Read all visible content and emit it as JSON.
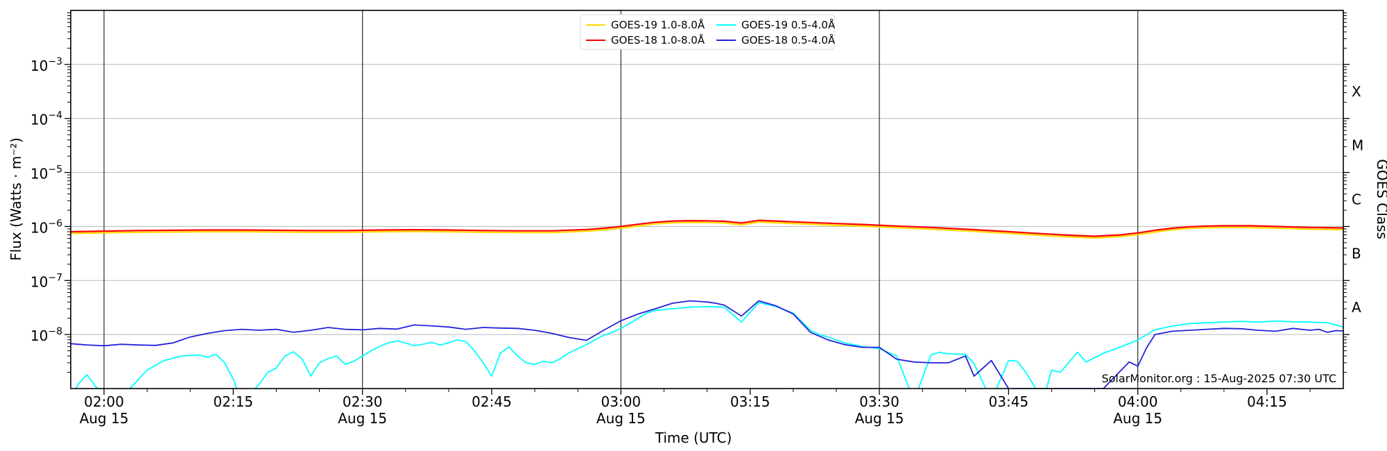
{
  "watermark": "SolarMonitor.org : 15-Aug-2025 07:30 UTC",
  "legend": {
    "items": [
      {
        "label": "GOES-19 1.0-8.0Å",
        "color": "#ffd900"
      },
      {
        "label": "GOES-18 1.0-8.0Å",
        "color": "#ff0000"
      },
      {
        "label": "GOES-19 0.5-4.0Å",
        "color": "#00ffff"
      },
      {
        "label": "GOES-18 0.5-4.0Å",
        "color": "#2222dd"
      }
    ]
  },
  "chart_data": {
    "type": "line",
    "title": "",
    "xlabel": "Time (UTC)",
    "ylabel": "Flux (Watts · m⁻²)",
    "ylabel_right": "GOES Class",
    "grid": true,
    "x_range_minutes_from_0200": [
      -3.86,
      143.86
    ],
    "y_range_exponents": [
      -9,
      -2
    ],
    "y_ticks_exponents": [
      -3,
      -4,
      -5,
      -6,
      -7,
      -8
    ],
    "x_ticks": [
      {
        "t": 0,
        "label": "02:00",
        "date": "Aug 15",
        "grid": true
      },
      {
        "t": 15,
        "label": "02:15",
        "date": "",
        "grid": false
      },
      {
        "t": 30,
        "label": "02:30",
        "date": "Aug 15",
        "grid": true
      },
      {
        "t": 45,
        "label": "02:45",
        "date": "",
        "grid": false
      },
      {
        "t": 60,
        "label": "03:00",
        "date": "Aug 15",
        "grid": true
      },
      {
        "t": 75,
        "label": "03:15",
        "date": "",
        "grid": false
      },
      {
        "t": 90,
        "label": "03:30",
        "date": "Aug 15",
        "grid": true
      },
      {
        "t": 105,
        "label": "03:45",
        "date": "",
        "grid": false
      },
      {
        "t": 120,
        "label": "04:00",
        "date": "Aug 15",
        "grid": true
      },
      {
        "t": 135,
        "label": "04:15",
        "date": "",
        "grid": false
      }
    ],
    "goes_class_labels": [
      {
        "label": "X",
        "exponent": -3.5
      },
      {
        "label": "M",
        "exponent": -4.5
      },
      {
        "label": "C",
        "exponent": -5.5
      },
      {
        "label": "B",
        "exponent": -6.5
      },
      {
        "label": "A",
        "exponent": -7.5
      }
    ],
    "flux_unit_scale": 1e-09,
    "series": [
      {
        "name": "GOES-19 1.0-8.0Å",
        "color": "#ffd900",
        "width": 2.2,
        "points": [
          [
            -4,
            745
          ],
          [
            0,
            763
          ],
          [
            4,
            781
          ],
          [
            8,
            790
          ],
          [
            12,
            800
          ],
          [
            16,
            800
          ],
          [
            20,
            790
          ],
          [
            24,
            781
          ],
          [
            28,
            781
          ],
          [
            32,
            800
          ],
          [
            36,
            809
          ],
          [
            40,
            800
          ],
          [
            44,
            781
          ],
          [
            48,
            772
          ],
          [
            52,
            772
          ],
          [
            56,
            818
          ],
          [
            58,
            865
          ],
          [
            60,
            930
          ],
          [
            62,
            1023
          ],
          [
            64,
            1116
          ],
          [
            66,
            1172
          ],
          [
            68,
            1190
          ],
          [
            70,
            1181
          ],
          [
            72,
            1163
          ],
          [
            74,
            1079
          ],
          [
            76,
            1209
          ],
          [
            78,
            1172
          ],
          [
            80,
            1135
          ],
          [
            84,
            1070
          ],
          [
            88,
            1014
          ],
          [
            92,
            949
          ],
          [
            96,
            893
          ],
          [
            100,
            828
          ],
          [
            104,
            763
          ],
          [
            108,
            698
          ],
          [
            112,
            642
          ],
          [
            115,
            614
          ],
          [
            118,
            651
          ],
          [
            120,
            707
          ],
          [
            122,
            790
          ],
          [
            124,
            865
          ],
          [
            126,
            921
          ],
          [
            128,
            949
          ],
          [
            130,
            958
          ],
          [
            133,
            958
          ],
          [
            136,
            930
          ],
          [
            140,
            893
          ],
          [
            144,
            874
          ]
        ]
      },
      {
        "name": "GOES-18 1.0-8.0Å",
        "color": "#ff0000",
        "width": 2.2,
        "points": [
          [
            -4,
            800
          ],
          [
            0,
            820
          ],
          [
            4,
            840
          ],
          [
            8,
            850
          ],
          [
            12,
            860
          ],
          [
            16,
            860
          ],
          [
            20,
            850
          ],
          [
            24,
            840
          ],
          [
            28,
            840
          ],
          [
            32,
            860
          ],
          [
            36,
            870
          ],
          [
            40,
            860
          ],
          [
            44,
            840
          ],
          [
            48,
            830
          ],
          [
            52,
            830
          ],
          [
            56,
            880
          ],
          [
            58,
            930
          ],
          [
            60,
            1000
          ],
          [
            62,
            1100
          ],
          [
            64,
            1200
          ],
          [
            66,
            1260
          ],
          [
            68,
            1280
          ],
          [
            70,
            1270
          ],
          [
            72,
            1250
          ],
          [
            74,
            1160
          ],
          [
            76,
            1300
          ],
          [
            78,
            1260
          ],
          [
            80,
            1220
          ],
          [
            84,
            1150
          ],
          [
            88,
            1090
          ],
          [
            92,
            1020
          ],
          [
            96,
            960
          ],
          [
            100,
            890
          ],
          [
            104,
            820
          ],
          [
            108,
            750
          ],
          [
            112,
            690
          ],
          [
            115,
            660
          ],
          [
            118,
            700
          ],
          [
            120,
            760
          ],
          [
            122,
            850
          ],
          [
            124,
            930
          ],
          [
            126,
            990
          ],
          [
            128,
            1020
          ],
          [
            130,
            1030
          ],
          [
            133,
            1030
          ],
          [
            136,
            1000
          ],
          [
            140,
            960
          ],
          [
            144,
            940
          ]
        ]
      },
      {
        "name": "GOES-19 0.5-4.0Å",
        "color": "#00ffff",
        "width": 1.8,
        "points": [
          [
            -4,
            0.6
          ],
          [
            -3,
            1.2
          ],
          [
            -2,
            1.8
          ],
          [
            -1,
            1.1
          ],
          [
            1,
            0.6
          ],
          [
            3,
            1.0
          ],
          [
            5,
            2.2
          ],
          [
            7,
            3.3
          ],
          [
            9,
            4.0
          ],
          [
            11,
            4.2
          ],
          [
            12,
            3.8
          ],
          [
            13,
            4.3
          ],
          [
            14,
            3.0
          ],
          [
            15,
            1.5
          ],
          [
            16,
            0.55
          ],
          [
            18,
            1.2
          ],
          [
            19,
            2.0
          ],
          [
            20,
            2.4
          ],
          [
            21,
            4.0
          ],
          [
            22,
            4.8
          ],
          [
            23,
            3.5
          ],
          [
            24,
            1.7
          ],
          [
            25,
            3.0
          ],
          [
            26,
            3.6
          ],
          [
            27,
            4.0
          ],
          [
            28,
            2.8
          ],
          [
            29,
            3.2
          ],
          [
            30,
            4.0
          ],
          [
            31,
            5.0
          ],
          [
            32,
            6.0
          ],
          [
            33,
            7.0
          ],
          [
            34,
            7.6
          ],
          [
            35,
            7.0
          ],
          [
            36,
            6.2
          ],
          [
            37,
            6.6
          ],
          [
            38,
            7.2
          ],
          [
            39,
            6.4
          ],
          [
            40,
            7.0
          ],
          [
            41,
            8.0
          ],
          [
            42,
            7.4
          ],
          [
            43,
            5.0
          ],
          [
            44,
            3.0
          ],
          [
            45,
            1.7
          ],
          [
            46,
            4.5
          ],
          [
            47,
            5.9
          ],
          [
            48,
            4.0
          ],
          [
            49,
            3.0
          ],
          [
            50,
            2.8
          ],
          [
            51,
            3.2
          ],
          [
            52,
            3.0
          ],
          [
            53,
            3.6
          ],
          [
            54,
            4.6
          ],
          [
            55,
            5.5
          ],
          [
            56,
            6.5
          ],
          [
            57,
            8.0
          ],
          [
            58,
            9.7
          ],
          [
            59,
            11.0
          ],
          [
            60,
            13.0
          ],
          [
            61,
            16.0
          ],
          [
            62,
            20.0
          ],
          [
            63,
            25.0
          ],
          [
            64,
            28.0
          ],
          [
            65,
            29.0
          ],
          [
            66,
            30.0
          ],
          [
            67,
            31.0
          ],
          [
            68,
            32.0
          ],
          [
            70,
            33.0
          ],
          [
            72,
            32.0
          ],
          [
            74,
            17.0
          ],
          [
            76,
            39.0
          ],
          [
            78,
            33.0
          ],
          [
            80,
            25.0
          ],
          [
            82,
            12.0
          ],
          [
            83,
            10.0
          ],
          [
            84,
            9.0
          ],
          [
            86,
            7.0
          ],
          [
            88,
            6.0
          ],
          [
            90,
            5.5
          ],
          [
            92,
            4.0
          ],
          [
            94,
            0.6
          ],
          [
            96,
            4.2
          ],
          [
            97,
            4.7
          ],
          [
            98,
            4.4
          ],
          [
            100,
            4.3
          ],
          [
            101,
            2.9
          ],
          [
            103,
            0.6
          ],
          [
            105,
            3.3
          ],
          [
            106,
            3.2
          ],
          [
            107,
            2.0
          ],
          [
            109,
            0.6
          ],
          [
            110,
            2.2
          ],
          [
            111,
            2.0
          ],
          [
            113,
            4.7
          ],
          [
            114,
            3.1
          ],
          [
            116,
            4.5
          ],
          [
            118,
            5.9
          ],
          [
            120,
            7.9
          ],
          [
            122,
            12.3
          ],
          [
            124,
            14.3
          ],
          [
            126,
            16.0
          ],
          [
            128,
            16.5
          ],
          [
            130,
            17.0
          ],
          [
            132,
            17.5
          ],
          [
            134,
            17.0
          ],
          [
            136,
            17.8
          ],
          [
            138,
            17.2
          ],
          [
            140,
            17.0
          ],
          [
            142,
            16.5
          ],
          [
            143,
            15.0
          ],
          [
            144,
            13.5
          ]
        ]
      },
      {
        "name": "GOES-18 0.5-4.0Å",
        "color": "#2222dd",
        "width": 1.8,
        "points": [
          [
            -4,
            6.8
          ],
          [
            -2,
            6.4
          ],
          [
            0,
            6.2
          ],
          [
            2,
            6.6
          ],
          [
            4,
            6.4
          ],
          [
            6,
            6.3
          ],
          [
            8,
            7.0
          ],
          [
            10,
            9.0
          ],
          [
            12,
            10.5
          ],
          [
            14,
            11.8
          ],
          [
            16,
            12.5
          ],
          [
            18,
            12.0
          ],
          [
            20,
            12.5
          ],
          [
            22,
            11.0
          ],
          [
            24,
            12.0
          ],
          [
            26,
            13.5
          ],
          [
            28,
            12.5
          ],
          [
            30,
            12.2
          ],
          [
            32,
            13.0
          ],
          [
            34,
            12.6
          ],
          [
            36,
            15.0
          ],
          [
            38,
            14.5
          ],
          [
            40,
            13.8
          ],
          [
            42,
            12.5
          ],
          [
            44,
            13.5
          ],
          [
            46,
            13.2
          ],
          [
            48,
            13.0
          ],
          [
            50,
            12.0
          ],
          [
            52,
            10.5
          ],
          [
            54,
            8.8
          ],
          [
            56,
            7.8
          ],
          [
            58,
            12.0
          ],
          [
            60,
            18.0
          ],
          [
            62,
            24.0
          ],
          [
            64,
            30.0
          ],
          [
            66,
            38.0
          ],
          [
            68,
            42.0
          ],
          [
            70,
            40.0
          ],
          [
            71,
            38.0
          ],
          [
            72,
            35.0
          ],
          [
            74,
            22.0
          ],
          [
            76,
            42.0
          ],
          [
            78,
            34.0
          ],
          [
            80,
            24.0
          ],
          [
            82,
            11.0
          ],
          [
            84,
            8.0
          ],
          [
            86,
            6.5
          ],
          [
            88,
            5.8
          ],
          [
            90,
            5.8
          ],
          [
            92,
            3.5
          ],
          [
            94,
            3.1
          ],
          [
            96,
            3.0
          ],
          [
            98,
            3.0
          ],
          [
            100,
            4.0
          ],
          [
            101,
            1.7
          ],
          [
            103,
            3.3
          ],
          [
            105,
            1.0
          ],
          [
            108,
            1.0
          ],
          [
            112,
            1.0
          ],
          [
            116,
            1.0
          ],
          [
            119,
            3.1
          ],
          [
            120,
            2.6
          ],
          [
            121,
            5.6
          ],
          [
            122,
            10.0
          ],
          [
            124,
            11.5
          ],
          [
            126,
            12.0
          ],
          [
            128,
            12.5
          ],
          [
            130,
            13.0
          ],
          [
            132,
            12.8
          ],
          [
            134,
            12.0
          ],
          [
            136,
            11.5
          ],
          [
            138,
            13.0
          ],
          [
            140,
            12.0
          ],
          [
            141,
            12.5
          ],
          [
            142,
            11.0
          ],
          [
            143,
            11.8
          ],
          [
            144,
            11.6
          ]
        ]
      }
    ],
    "colors": {
      "background": "#ffffff",
      "spine": "#000000",
      "vertical_grid": "#2a2a2a",
      "horizontal_grid": "#b8b8b8",
      "text": "#000000",
      "legend_border": "#d9d9d9"
    }
  }
}
